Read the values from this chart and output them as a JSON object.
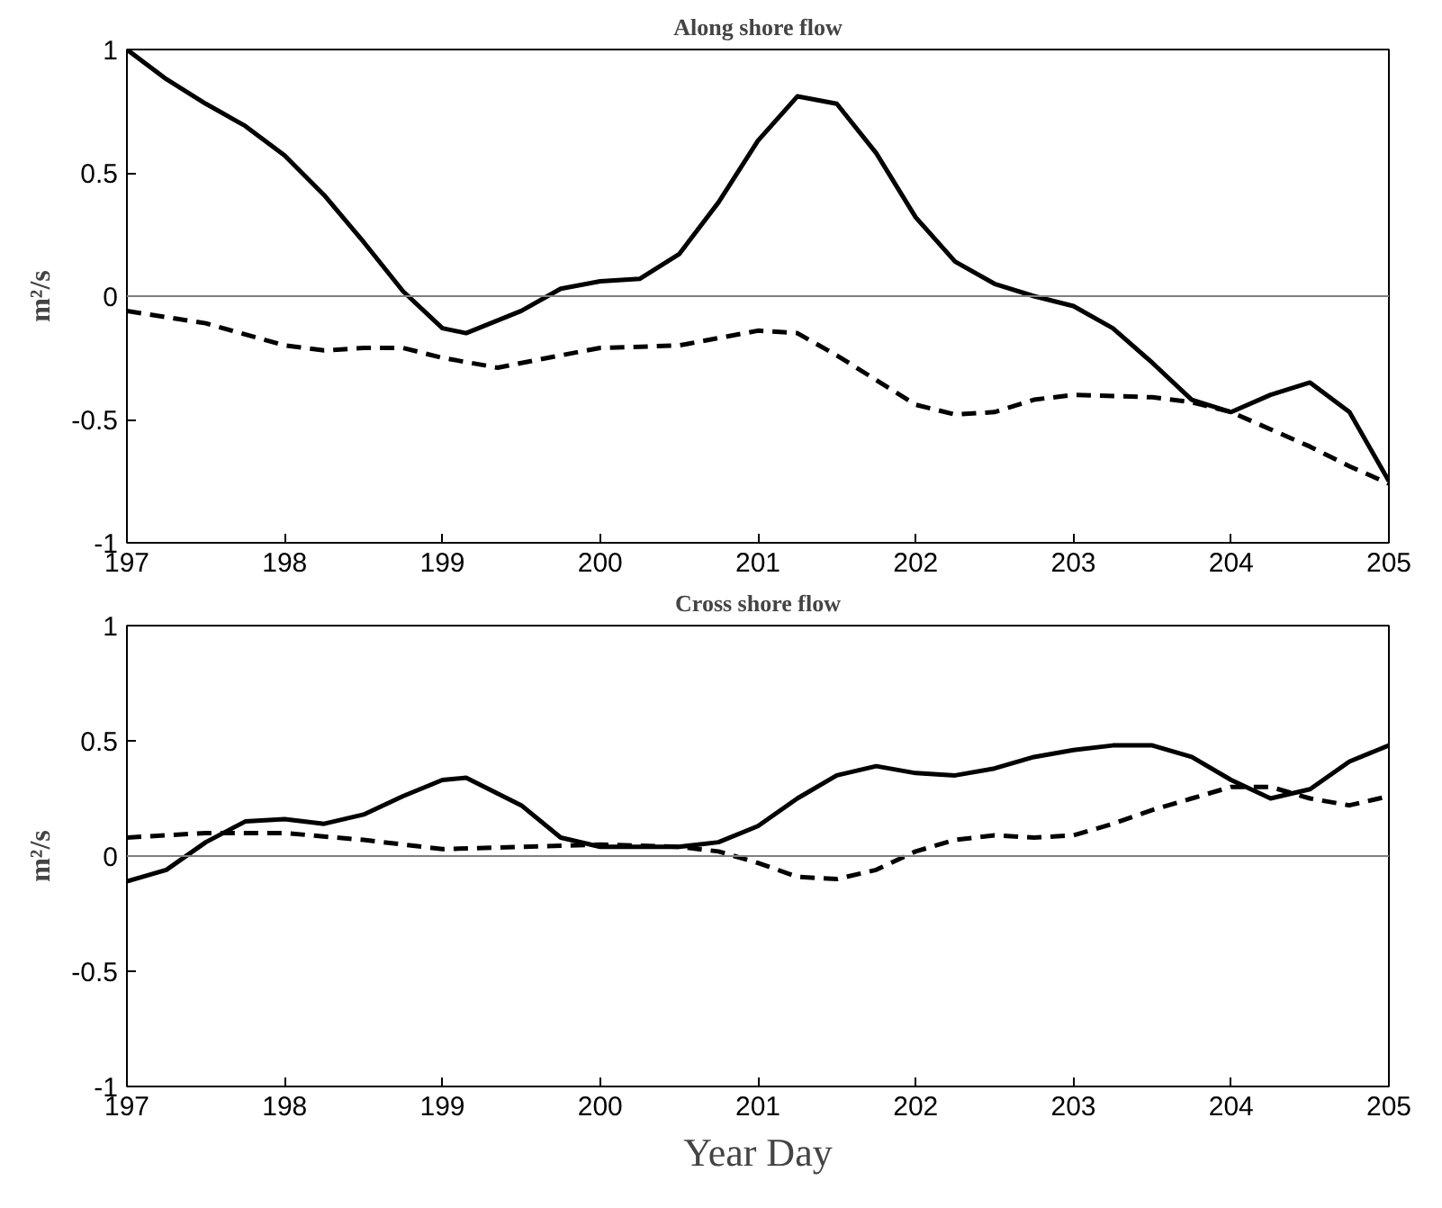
{
  "chart_data": [
    {
      "type": "line",
      "title": "Along shore flow",
      "ylabel": "m²/s",
      "xlim": [
        197,
        205
      ],
      "ylim": [
        -1,
        1
      ],
      "xticks": [
        197,
        198,
        199,
        200,
        201,
        202,
        203,
        204,
        205
      ],
      "yticks": [
        -1,
        -0.5,
        0,
        0.5,
        1
      ],
      "grid": false,
      "ref_lines": [
        {
          "axis": "y",
          "value": 0,
          "color": "#808080"
        }
      ],
      "series": [
        {
          "color": "#000000",
          "line_style": "solid",
          "x": [
            197,
            197.25,
            197.5,
            197.75,
            198,
            198.25,
            198.5,
            198.75,
            199,
            199.15,
            199.5,
            199.75,
            200,
            200.25,
            200.5,
            200.75,
            201,
            201.25,
            201.5,
            201.75,
            202,
            202.25,
            202.5,
            202.75,
            203,
            203.25,
            203.5,
            203.75,
            204,
            204.25,
            204.5,
            204.75,
            205
          ],
          "values": [
            1.0,
            0.88,
            0.78,
            0.69,
            0.57,
            0.41,
            0.22,
            0.02,
            -0.13,
            -0.15,
            -0.06,
            0.03,
            0.06,
            0.07,
            0.17,
            0.38,
            0.63,
            0.81,
            0.78,
            0.58,
            0.32,
            0.14,
            0.05,
            0.0,
            -0.04,
            -0.13,
            -0.27,
            -0.42,
            -0.47,
            -0.4,
            -0.35,
            -0.47,
            -0.75
          ]
        },
        {
          "color": "#000000",
          "line_style": "dashed",
          "x": [
            197,
            197.5,
            198,
            198.25,
            198.5,
            198.75,
            199,
            199.35,
            199.75,
            200,
            200.5,
            200.75,
            201,
            201.25,
            201.5,
            201.75,
            202,
            202.25,
            202.5,
            202.75,
            203,
            203.5,
            203.75,
            204,
            204.25,
            204.5,
            204.75,
            205
          ],
          "values": [
            -0.06,
            -0.11,
            -0.2,
            -0.22,
            -0.21,
            -0.21,
            -0.25,
            -0.29,
            -0.24,
            -0.21,
            -0.2,
            -0.17,
            -0.14,
            -0.15,
            -0.24,
            -0.34,
            -0.44,
            -0.48,
            -0.47,
            -0.42,
            -0.4,
            -0.41,
            -0.43,
            -0.47,
            -0.54,
            -0.61,
            -0.69,
            -0.76
          ]
        }
      ]
    },
    {
      "type": "line",
      "title": "Cross shore flow",
      "ylabel": "m²/s",
      "xlabel": "Year Day",
      "xlim": [
        197,
        205
      ],
      "ylim": [
        -1,
        1
      ],
      "xticks": [
        197,
        198,
        199,
        200,
        201,
        202,
        203,
        204,
        205
      ],
      "yticks": [
        -1,
        -0.5,
        0,
        0.5,
        1
      ],
      "grid": false,
      "ref_lines": [
        {
          "axis": "y",
          "value": 0,
          "color": "#808080"
        }
      ],
      "series": [
        {
          "color": "#000000",
          "line_style": "solid",
          "x": [
            197,
            197.25,
            197.5,
            197.75,
            198,
            198.25,
            198.5,
            198.75,
            199,
            199.15,
            199.5,
            199.75,
            200,
            200.5,
            200.75,
            201,
            201.25,
            201.5,
            201.75,
            202,
            202.25,
            202.5,
            202.75,
            203,
            203.25,
            203.5,
            203.75,
            204,
            204.25,
            204.5,
            204.75,
            205
          ],
          "values": [
            -0.11,
            -0.06,
            0.06,
            0.15,
            0.16,
            0.14,
            0.18,
            0.26,
            0.33,
            0.34,
            0.22,
            0.08,
            0.04,
            0.04,
            0.06,
            0.13,
            0.25,
            0.35,
            0.39,
            0.36,
            0.35,
            0.38,
            0.43,
            0.46,
            0.48,
            0.48,
            0.43,
            0.33,
            0.25,
            0.29,
            0.41,
            0.48
          ]
        },
        {
          "color": "#000000",
          "line_style": "dashed",
          "x": [
            197,
            197.5,
            198,
            198.5,
            199,
            199.5,
            200,
            200.5,
            200.75,
            201,
            201.25,
            201.5,
            201.75,
            202,
            202.25,
            202.5,
            202.75,
            203,
            203.25,
            203.5,
            203.75,
            204,
            204.25,
            204.5,
            204.75,
            205
          ],
          "values": [
            0.08,
            0.1,
            0.1,
            0.07,
            0.03,
            0.04,
            0.05,
            0.04,
            0.02,
            -0.03,
            -0.09,
            -0.1,
            -0.06,
            0.02,
            0.07,
            0.09,
            0.08,
            0.09,
            0.14,
            0.2,
            0.25,
            0.3,
            0.3,
            0.25,
            0.22,
            0.26
          ]
        }
      ]
    }
  ]
}
